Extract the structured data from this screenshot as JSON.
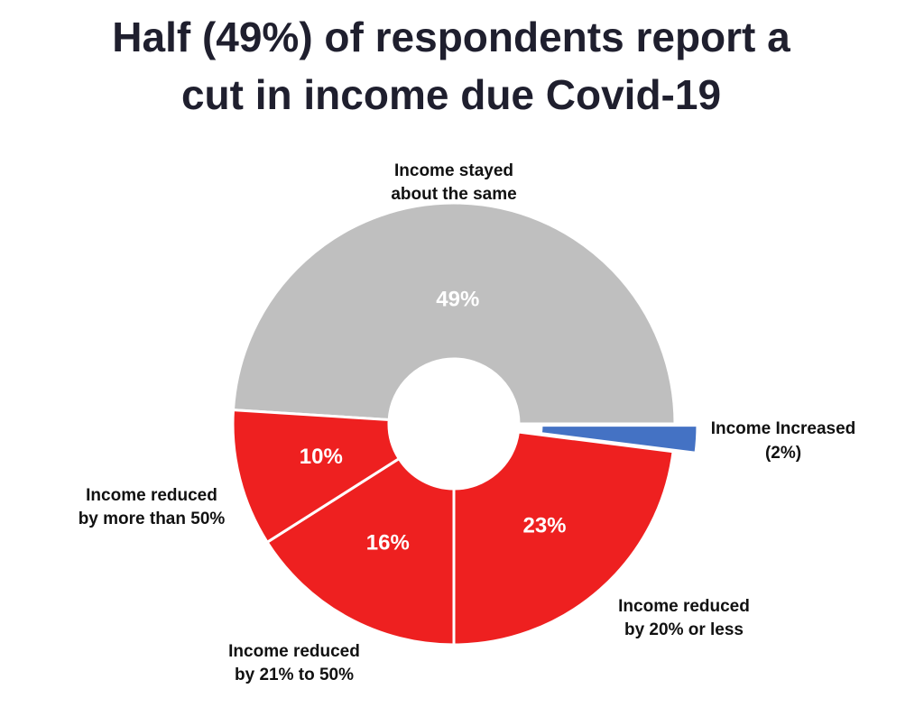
{
  "chart_data": {
    "type": "donut",
    "title": "Half (49%) of respondents report a cut in income due Covid-19",
    "categories": [
      "Income stayed about the same",
      "Income Increased",
      "Income reduced by 20% or less",
      "Income reduced by 21% to 50%",
      "Income reduced by more than 50%"
    ],
    "values": [
      49,
      2,
      23,
      16,
      10
    ],
    "value_labels": [
      "49%",
      "(2%)",
      "23%",
      "16%",
      "10%"
    ],
    "colors": [
      "#bfbfbf",
      "#4472c4",
      "#ee2020",
      "#ee2020",
      "#ee2020"
    ]
  }
}
